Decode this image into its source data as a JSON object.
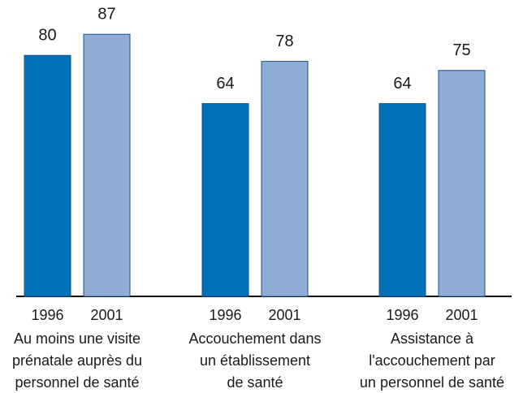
{
  "chart_data": {
    "type": "bar",
    "categories": [
      [
        "Au moins une visite",
        "prénatale auprès du",
        "personnel de santé"
      ],
      [
        "Accouchement dans",
        "un établissement",
        "de santé"
      ],
      [
        "Assistance à",
        "l'accouchement par",
        "un personnel de santé"
      ]
    ],
    "series": [
      {
        "name": "1996",
        "color": "#0071b9",
        "values": [
          80,
          64,
          64
        ]
      },
      {
        "name": "2001",
        "color": "#8fadd7",
        "values": [
          87,
          78,
          75
        ]
      }
    ]
  }
}
